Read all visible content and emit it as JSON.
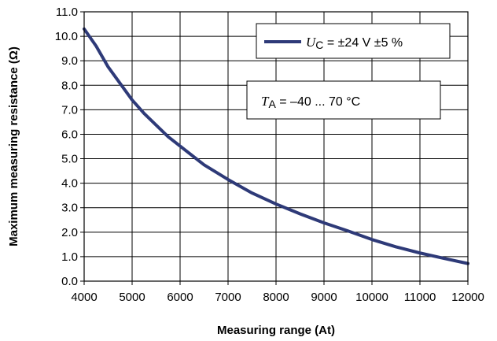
{
  "chart_data": {
    "type": "line",
    "xlabel": "Measuring range  (At)",
    "ylabel": "Maximum measuring resistance (Ω)",
    "xlim": [
      4000,
      12000
    ],
    "ylim": [
      0.0,
      11.0
    ],
    "x_ticks": [
      "4000",
      "5000",
      "6000",
      "7000",
      "8000",
      "9000",
      "10000",
      "11000",
      "12000"
    ],
    "y_ticks": [
      "0.0",
      "1.0",
      "2.0",
      "3.0",
      "4.0",
      "5.0",
      "6.0",
      "7.0",
      "8.0",
      "9.0",
      "10.0",
      "11.0"
    ],
    "grid": true,
    "legend_position": "top-right",
    "series": [
      {
        "name": "U_C = ±24 V ±5 %",
        "color": "#2e3a78",
        "x": [
          4000,
          4250,
          4500,
          5000,
          5250,
          5750,
          6500,
          7000,
          7500,
          8000,
          8500,
          9000,
          9500,
          10000,
          10500,
          11000,
          11500,
          12000
        ],
        "y": [
          10.3,
          9.6,
          8.75,
          7.4,
          6.85,
          5.9,
          4.75,
          4.15,
          3.6,
          3.15,
          2.75,
          2.38,
          2.05,
          1.7,
          1.4,
          1.15,
          0.93,
          0.72
        ]
      }
    ],
    "legend": {
      "italic_part": "U",
      "subscript": "C",
      "rest": " = ±24 V ±5 %"
    },
    "annotation": {
      "italic_part": "T",
      "subscript": "A",
      "rest": " = –40 ... 70 °C"
    }
  }
}
